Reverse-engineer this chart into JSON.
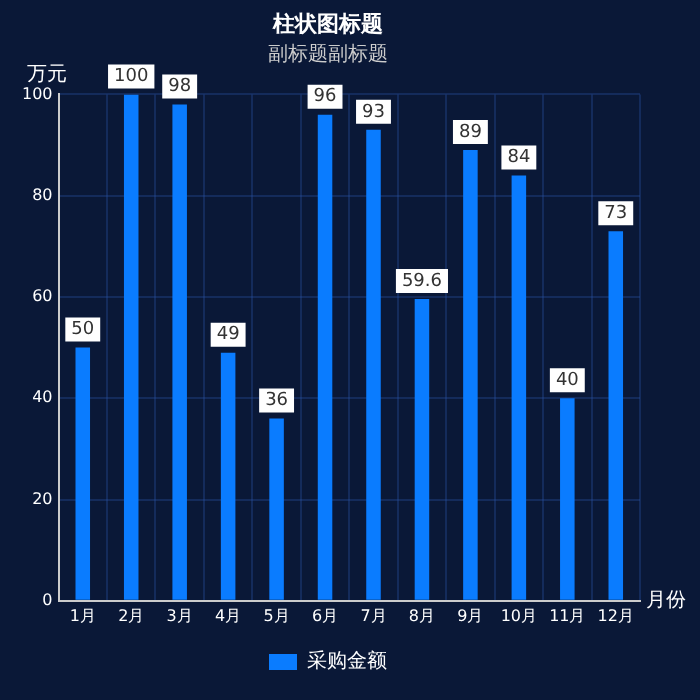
{
  "chart_data": {
    "type": "bar",
    "title": "柱状图标题",
    "subtitle": "副标题副标题",
    "xlabel": "月份",
    "ylabel": "万元",
    "categories": [
      "1月",
      "2月",
      "3月",
      "4月",
      "5月",
      "6月",
      "7月",
      "8月",
      "9月",
      "10月",
      "11月",
      "12月"
    ],
    "series": [
      {
        "name": "采购金额",
        "color": "#0a7cff",
        "values": [
          50,
          100,
          98,
          49,
          36,
          96,
          93,
          59.6,
          89,
          84,
          40,
          73
        ]
      }
    ],
    "ylim": [
      0,
      100
    ],
    "yticks": [
      0,
      20,
      40,
      60,
      80,
      100
    ],
    "grid": true,
    "legend": "bottom",
    "data_labels": true
  }
}
